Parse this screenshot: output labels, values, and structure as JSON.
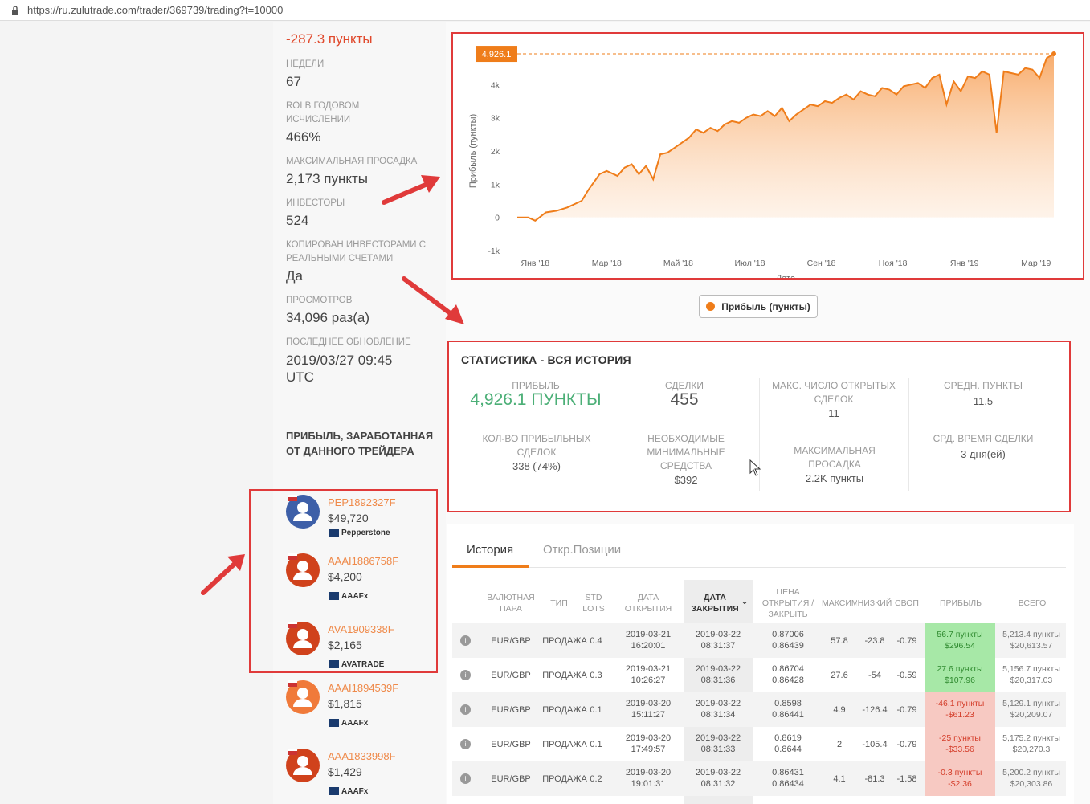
{
  "browser": {
    "url": "https://ru.zulutrade.com/trader/369739/trading?t=10000"
  },
  "stats": [
    {
      "label": "",
      "value": "-287.3 пункты",
      "tone": "red"
    },
    {
      "label": "НЕДЕЛИ",
      "value": "67"
    },
    {
      "label": "ROI В ГОДОВОМ ИСЧИСЛЕНИИ",
      "value": "466%"
    },
    {
      "label": "МАКСИМАЛЬНАЯ ПРОСАДКА",
      "value": "2,173 пункты"
    },
    {
      "label": "ИНВЕСТОРЫ",
      "value": "524"
    },
    {
      "label": "КОПИРОВАН ИНВЕСТОРАМИ С РЕАЛЬНЫМИ СЧЕТАМИ",
      "value": "Да"
    },
    {
      "label": "ПРОСМОТРОВ",
      "value": "34,096 раз(а)"
    },
    {
      "label": "ПОСЛЕДНЕЕ ОБНОВЛЕНИЕ",
      "value": "2019/03/27 09:45 UTC"
    }
  ],
  "chart_data": {
    "type": "area",
    "ylabel": "Прибыль (пункты)",
    "xlabel": "Дата",
    "y_ticks": [
      "-1k",
      "0",
      "1k",
      "2k",
      "3k",
      "4k"
    ],
    "ylim": [
      -1000,
      5000
    ],
    "x_ticks": [
      "Янв '18",
      "Мар '18",
      "Май '18",
      "Июл '18",
      "Сен '18",
      "Ноя '18",
      "Янв '19",
      "Мар '19"
    ],
    "current_value_label": "4,926.1",
    "series": [
      {
        "name": "Прибыль (пункты)",
        "color": "#ef7d1a",
        "x_months": [
          0,
          0.3,
          0.5,
          0.8,
          1.1,
          1.4,
          1.6,
          1.8,
          2.0,
          2.3,
          2.5,
          2.8,
          3.0,
          3.2,
          3.4,
          3.6,
          3.8,
          4.0,
          4.2,
          4.4,
          4.6,
          4.8,
          5.0,
          5.2,
          5.4,
          5.6,
          5.8,
          6.0,
          6.2,
          6.4,
          6.6,
          6.8,
          7.0,
          7.2,
          7.4,
          7.6,
          7.8,
          8.0,
          8.2,
          8.4,
          8.6,
          8.8,
          9.0,
          9.2,
          9.4,
          9.6,
          9.8,
          10.0,
          10.2,
          10.4,
          10.6,
          10.8,
          11.0,
          11.2,
          11.4,
          11.6,
          11.8,
          12.0,
          12.2,
          12.4,
          12.6,
          12.8,
          13.0,
          13.2,
          13.4,
          13.6,
          13.8,
          14.0,
          14.2,
          14.4,
          14.6,
          14.8,
          15.0
        ],
        "values": [
          0,
          0,
          -100,
          150,
          200,
          300,
          400,
          500,
          850,
          1300,
          1400,
          1250,
          1500,
          1600,
          1300,
          1550,
          1150,
          1900,
          1950,
          2100,
          2250,
          2400,
          2650,
          2550,
          2700,
          2600,
          2800,
          2900,
          2850,
          3000,
          3100,
          3050,
          3200,
          3050,
          3300,
          2900,
          3100,
          3250,
          3400,
          3350,
          3500,
          3450,
          3600,
          3700,
          3550,
          3800,
          3700,
          3650,
          3900,
          3850,
          3700,
          3950,
          4000,
          4050,
          3900,
          4200,
          4300,
          3400,
          4100,
          3800,
          4250,
          4200,
          4400,
          4300,
          2550,
          4400,
          4350,
          4300,
          4500,
          4450,
          4200,
          4800,
          4926
        ]
      }
    ],
    "grid": false,
    "legend": "bottom"
  },
  "legend_label": "Прибыль (пункты)",
  "stats_panel": {
    "title": "СТАТИСТИКА - ВСЯ ИСТОРИЯ",
    "profit_label": "ПРИБЫЛЬ",
    "profit_value": "4,926.1 пункты",
    "trades_label": "СДЕЛКИ",
    "trades_value": "455",
    "max_open_label": "МАКС. ЧИСЛО ОТКРЫТЫХ СДЕЛОК",
    "max_open_value": "11",
    "avg_pips_label": "СРЕДН. ПУНКТЫ",
    "avg_pips_value": "11.5",
    "winning_label": "КОЛ-ВО ПРИБЫЛЬНЫХ СДЕЛОК",
    "winning_value": "338 (74%)",
    "min_funds_label": "НЕОБХОДИМЫЕ МИНИМАЛЬНЫЕ СРЕДСТВА",
    "min_funds_value": "$392",
    "max_dd_label": "МАКСИМАЛЬНАЯ ПРОСАДКА",
    "max_dd_value": "2.2K пункты",
    "avg_time_label": "СРД. ВРЕМЯ СДЕЛКИ",
    "avg_time_value": "3 дня(ей)"
  },
  "history": {
    "tabs": [
      "История",
      "Откр.Позиции"
    ],
    "headers": [
      "ВАЛЮТНАЯ ПАРА",
      "ТИП",
      "STD LOTS",
      "ДАТА ОТКРЫТИЯ",
      "ДАТА ЗАКРЫТИЯ",
      "ЦЕНА ОТКРЫТИЯ / ЗАКРЫТЬ",
      "МАКСИМ",
      "НИЗКИЙ",
      "СВОП",
      "ПРИБЫЛЬ",
      "ВСЕГО"
    ],
    "rows": [
      {
        "pair": "EUR/GBP",
        "type": "ПРОДАЖА",
        "lots": "0.4",
        "open": "2019-03-21 16:20:01",
        "close": "2019-03-22 08:31:37",
        "price_open": "0.87006",
        "price_close": "0.86439",
        "high": "57.8",
        "low": "-23.8",
        "swap": "-0.79",
        "pips": "56.7 пункты",
        "usd": "$296.54",
        "sign": "pos",
        "total_pips": "5,213.4 пункты",
        "total_usd": "$20,613.57"
      },
      {
        "pair": "EUR/GBP",
        "type": "ПРОДАЖА",
        "lots": "0.3",
        "open": "2019-03-21 10:26:27",
        "close": "2019-03-22 08:31:36",
        "price_open": "0.86704",
        "price_close": "0.86428",
        "high": "27.6",
        "low": "-54",
        "swap": "-0.59",
        "pips": "27.6 пункты",
        "usd": "$107.96",
        "sign": "pos",
        "total_pips": "5,156.7 пункты",
        "total_usd": "$20,317.03"
      },
      {
        "pair": "EUR/GBP",
        "type": "ПРОДАЖА",
        "lots": "0.1",
        "open": "2019-03-20 15:11:27",
        "close": "2019-03-22 08:31:34",
        "price_open": "0.8598",
        "price_close": "0.86441",
        "high": "4.9",
        "low": "-126.4",
        "swap": "-0.79",
        "pips": "-46.1 пункты",
        "usd": "-$61.23",
        "sign": "neg",
        "total_pips": "5,129.1 пункты",
        "total_usd": "$20,209.07"
      },
      {
        "pair": "EUR/GBP",
        "type": "ПРОДАЖА",
        "lots": "0.1",
        "open": "2019-03-20 17:49:57",
        "close": "2019-03-22 08:31:33",
        "price_open": "0.8619",
        "price_close": "0.8644",
        "high": "2",
        "low": "-105.4",
        "swap": "-0.79",
        "pips": "-25 пункты",
        "usd": "-$33.56",
        "sign": "neg",
        "total_pips": "5,175.2 пункты",
        "total_usd": "$20,270.3"
      },
      {
        "pair": "EUR/GBP",
        "type": "ПРОДАЖА",
        "lots": "0.2",
        "open": "2019-03-20 19:01:31",
        "close": "2019-03-22 08:31:32",
        "price_open": "0.86431",
        "price_close": "0.86434",
        "high": "4.1",
        "low": "-81.3",
        "swap": "-1.58",
        "pips": "-0.3 пункты",
        "usd": "-$2.36",
        "sign": "neg",
        "total_pips": "5,200.2 пункты",
        "total_usd": "$20,303.86"
      }
    ]
  },
  "investors": {
    "title": "ПРИБЫЛЬ, ЗАРАБОТАННАЯ ОТ ДАННОГО ТРЕЙДЕРА",
    "items": [
      {
        "name": "PEP1892327F",
        "amount": "$49,720",
        "broker": "Pepperstone",
        "avatar_color": "#3d5fa8"
      },
      {
        "name": "AAAI1886758F",
        "amount": "$4,200",
        "broker": "AAAFx",
        "avatar_color": "#d0421c"
      },
      {
        "name": "AVA1909338F",
        "amount": "$2,165",
        "broker": "AVATRADE",
        "avatar_color": "#d0421c"
      },
      {
        "name": "AAAI1894539F",
        "amount": "$1,815",
        "broker": "AAAFx",
        "avatar_color": "#f07a3a"
      },
      {
        "name": "AAA1833998F",
        "amount": "$1,429",
        "broker": "AAAFx",
        "avatar_color": "#d0421c"
      }
    ]
  }
}
